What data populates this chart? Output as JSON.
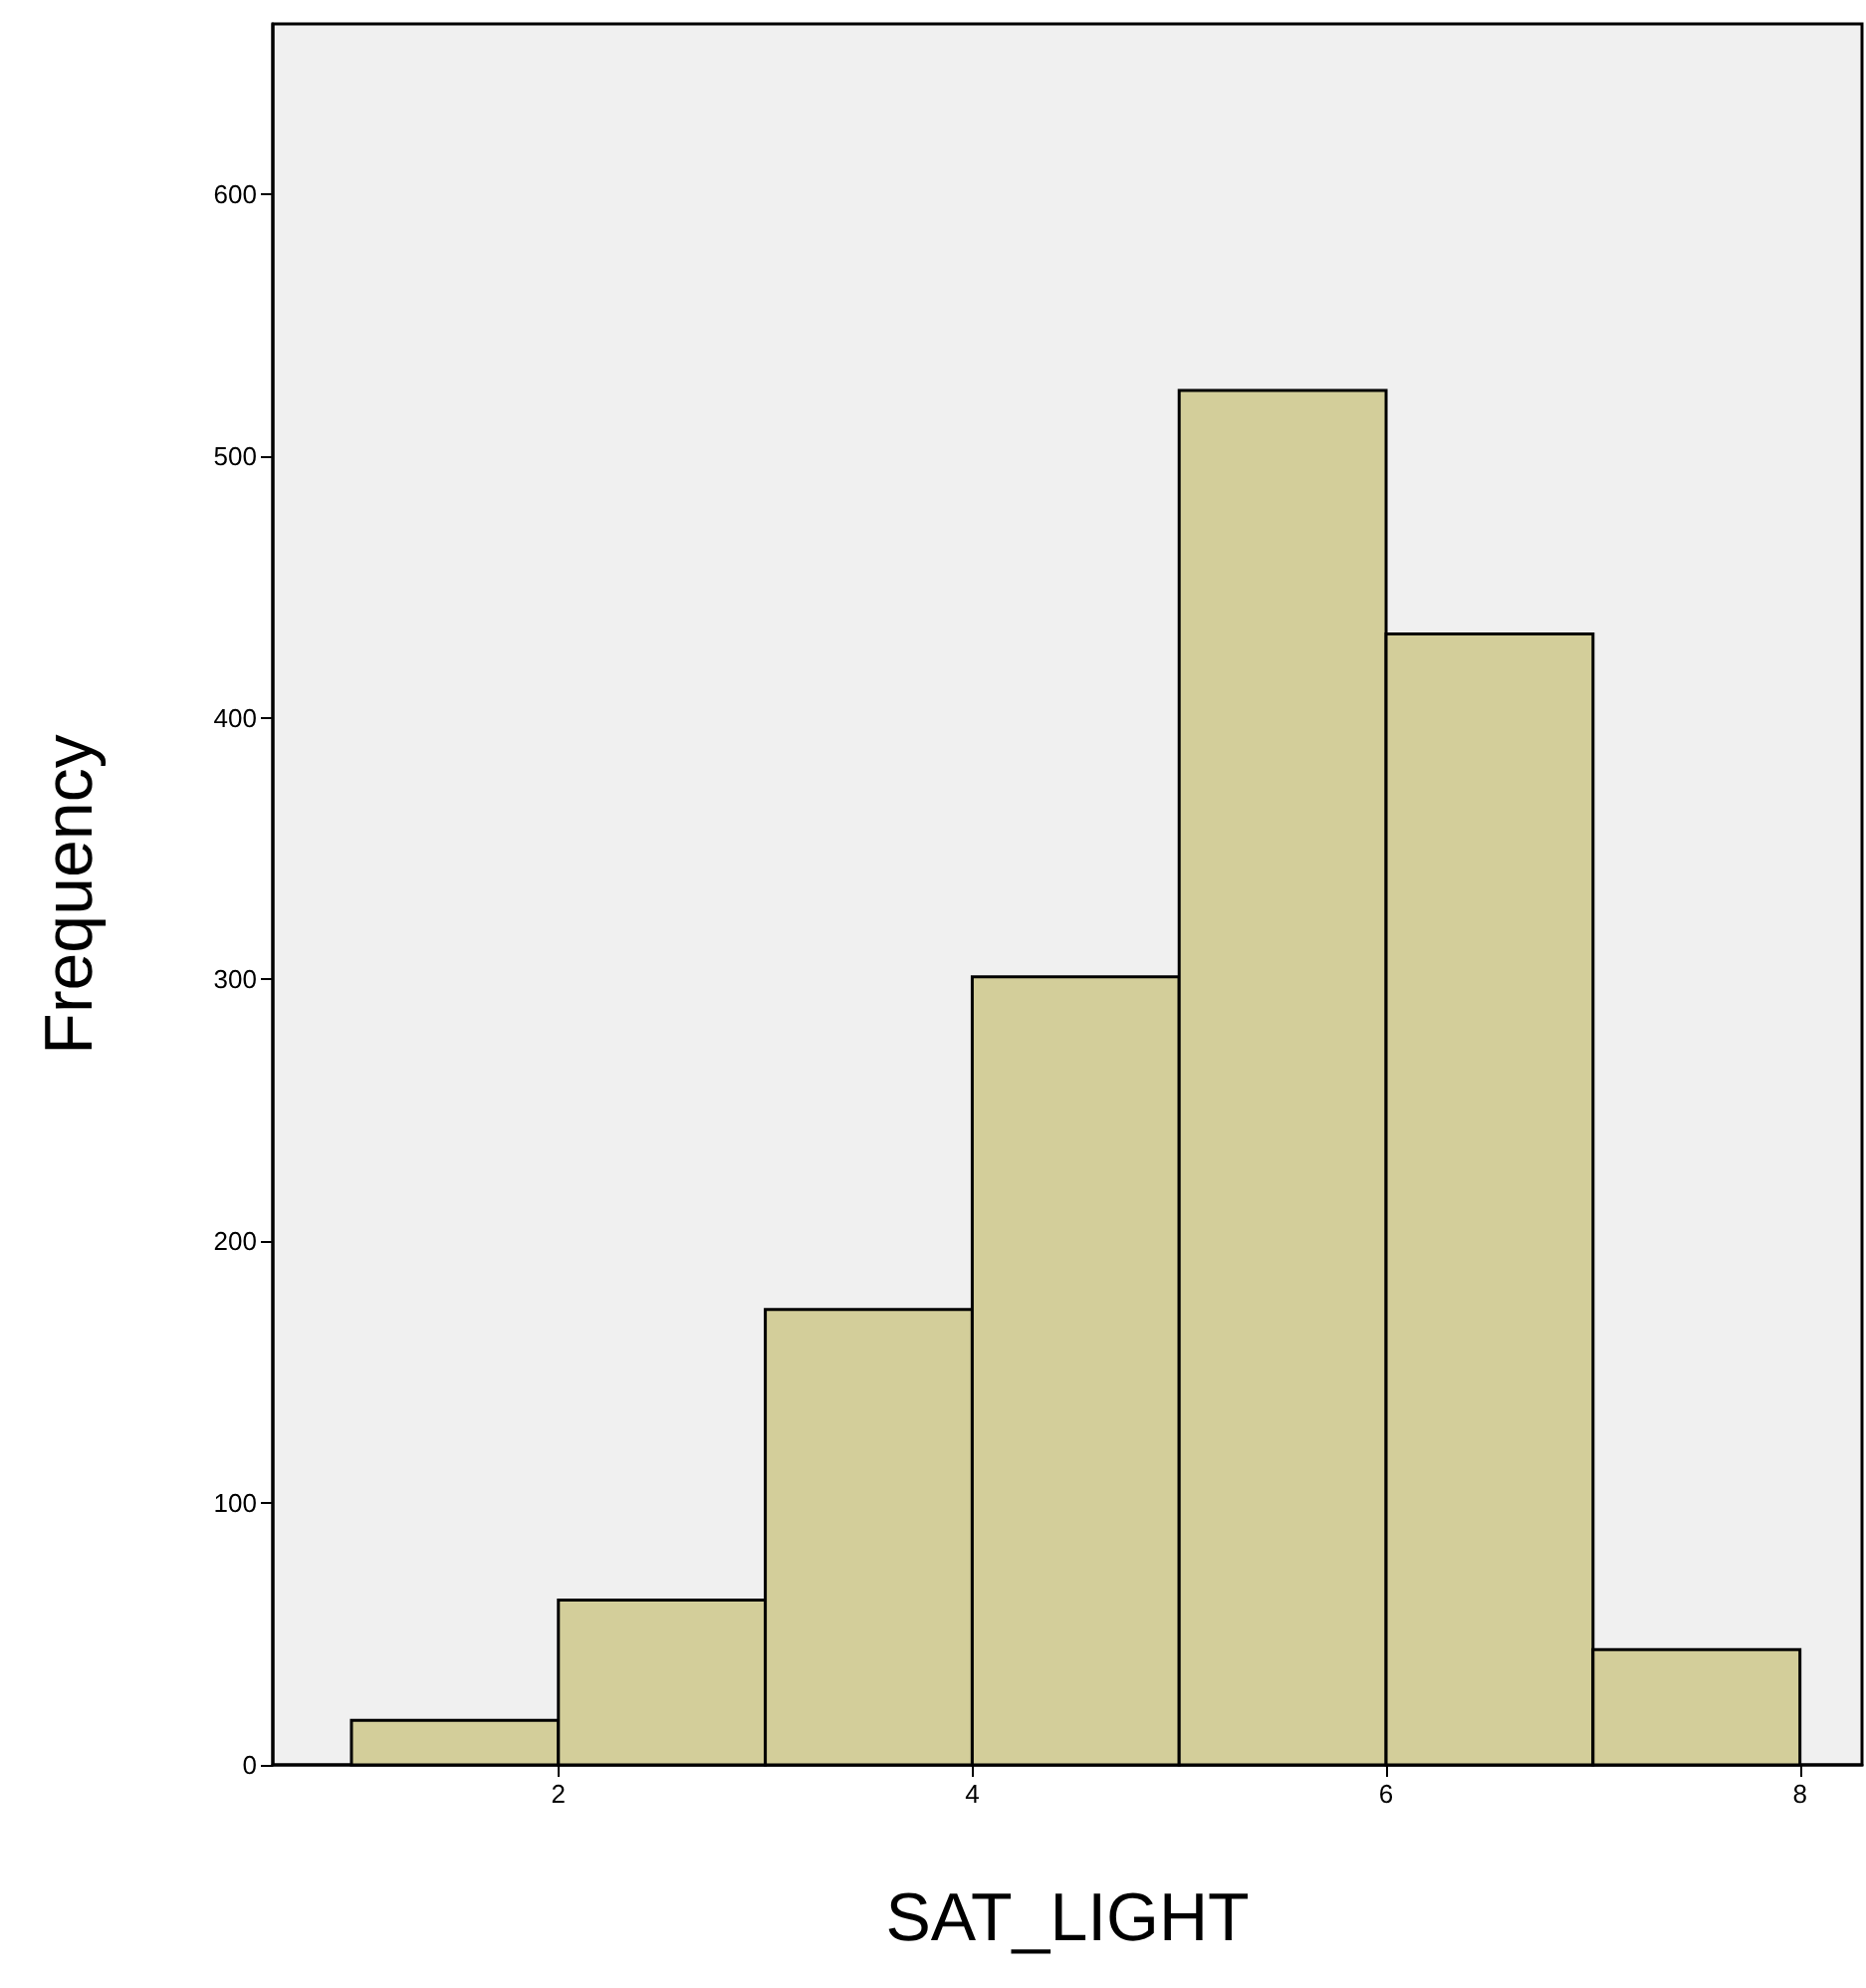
{
  "chart_data": {
    "type": "histogram",
    "xlabel": "SAT_LIGHT",
    "ylabel": "Frequency",
    "bins": [
      1,
      2,
      3,
      4,
      5,
      6,
      7,
      8
    ],
    "values": [
      17,
      63,
      174,
      301,
      525,
      432,
      44
    ],
    "color": "#d3ce9a",
    "xlim": [
      0.62,
      8.3
    ],
    "xticks": [
      2,
      4,
      6,
      8
    ],
    "ylim": [
      0,
      665
    ],
    "yticks": [
      0,
      100,
      200,
      300,
      400,
      500,
      600
    ],
    "grid": false
  }
}
